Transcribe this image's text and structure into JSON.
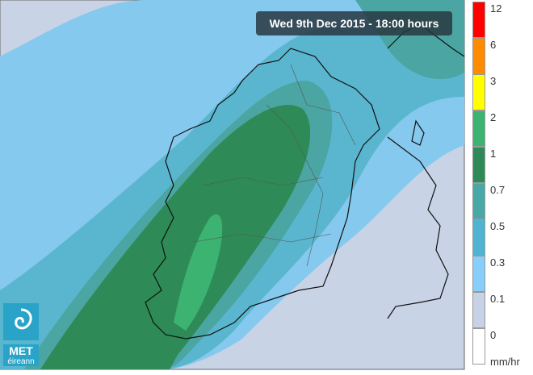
{
  "timestamp": "Wed 9th Dec 2015 - 18:00 hours",
  "legend": {
    "items": [
      {
        "label": "12",
        "color": "#ff0000"
      },
      {
        "label": "6",
        "color": "#ff8c00"
      },
      {
        "label": "3",
        "color": "#ffff00"
      },
      {
        "label": "2",
        "color": "#3cb371"
      },
      {
        "label": "1",
        "color": "#2e8b57"
      },
      {
        "label": "0.7",
        "color": "#48a8a8"
      },
      {
        "label": "0.5",
        "color": "#4fb3d3"
      },
      {
        "label": "0.3",
        "color": "#87cefa"
      },
      {
        "label": "0.1",
        "color": "#c8d2e6"
      },
      {
        "label": "0",
        "color": "#ffffff"
      }
    ],
    "unit": "mm/hr"
  },
  "logo": {
    "line1": "MET",
    "line2": "éireann"
  }
}
